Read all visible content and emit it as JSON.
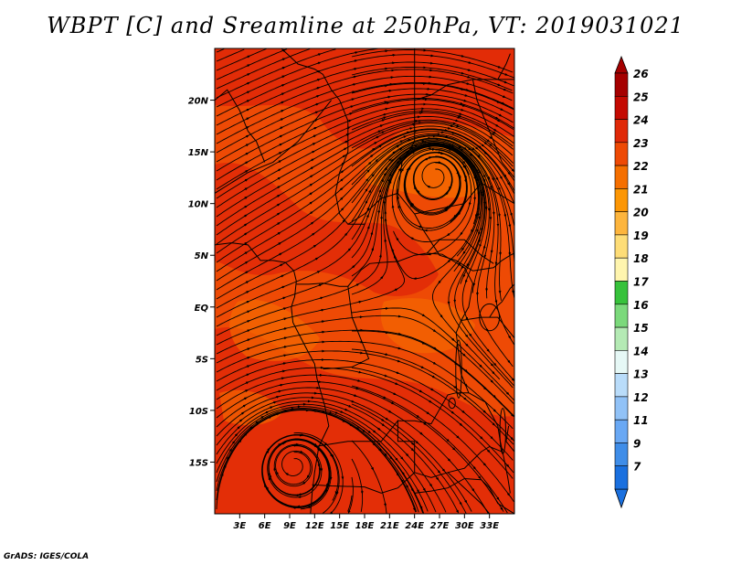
{
  "title": "WBPT [C] and Sreamline at 250hPa, VT: 2019031021",
  "credit": "GrADS: IGES/COLA",
  "map": {
    "lon_range": [
      0,
      36
    ],
    "lat_range": [
      -20,
      25
    ],
    "lon_ticks": [
      {
        "value": 3,
        "label": "3E"
      },
      {
        "value": 6,
        "label": "6E"
      },
      {
        "value": 9,
        "label": "9E"
      },
      {
        "value": 12,
        "label": "12E"
      },
      {
        "value": 15,
        "label": "15E"
      },
      {
        "value": 18,
        "label": "18E"
      },
      {
        "value": 21,
        "label": "21E"
      },
      {
        "value": 24,
        "label": "24E"
      },
      {
        "value": 27,
        "label": "27E"
      },
      {
        "value": 30,
        "label": "30E"
      },
      {
        "value": 33,
        "label": "33E"
      }
    ],
    "lat_ticks": [
      {
        "value": 20,
        "label": "20N"
      },
      {
        "value": 15,
        "label": "15N"
      },
      {
        "value": 10,
        "label": "10N"
      },
      {
        "value": 5,
        "label": "5N"
      },
      {
        "value": 0,
        "label": "EQ"
      },
      {
        "value": -5,
        "label": "5S"
      },
      {
        "value": -10,
        "label": "10S"
      },
      {
        "value": -15,
        "label": "15S"
      }
    ],
    "dominant_field_color": "#ee4a05",
    "vortices": [
      {
        "lon": 26.5,
        "lat": 12.8,
        "sense": "anticyclonic"
      },
      {
        "lon": 9.5,
        "lat": -15.2,
        "sense": "anticyclonic"
      }
    ]
  },
  "colorbar": {
    "levels": [
      {
        "label": "26",
        "color": "#a50000"
      },
      {
        "label": "25",
        "color": "#c40a02"
      },
      {
        "label": "24",
        "color": "#e02908"
      },
      {
        "label": "23",
        "color": "#ee4a05"
      },
      {
        "label": "22",
        "color": "#f56f00"
      },
      {
        "label": "21",
        "color": "#fc9604"
      },
      {
        "label": "20",
        "color": "#fdb53d"
      },
      {
        "label": "19",
        "color": "#fedd77"
      },
      {
        "label": "18",
        "color": "#fff5ae"
      },
      {
        "label": "17",
        "color": "#37c23b"
      },
      {
        "label": "16",
        "color": "#7bd97b"
      },
      {
        "label": "15",
        "color": "#b4eab4"
      },
      {
        "label": "14",
        "color": "#e6f8f6"
      },
      {
        "label": "13",
        "color": "#b9dcfa"
      },
      {
        "label": "12",
        "color": "#91c2f7"
      },
      {
        "label": "11",
        "color": "#69a8f4"
      },
      {
        "label": "9",
        "color": "#3f8de8"
      },
      {
        "label": "7",
        "color": "#1a70df"
      }
    ]
  }
}
